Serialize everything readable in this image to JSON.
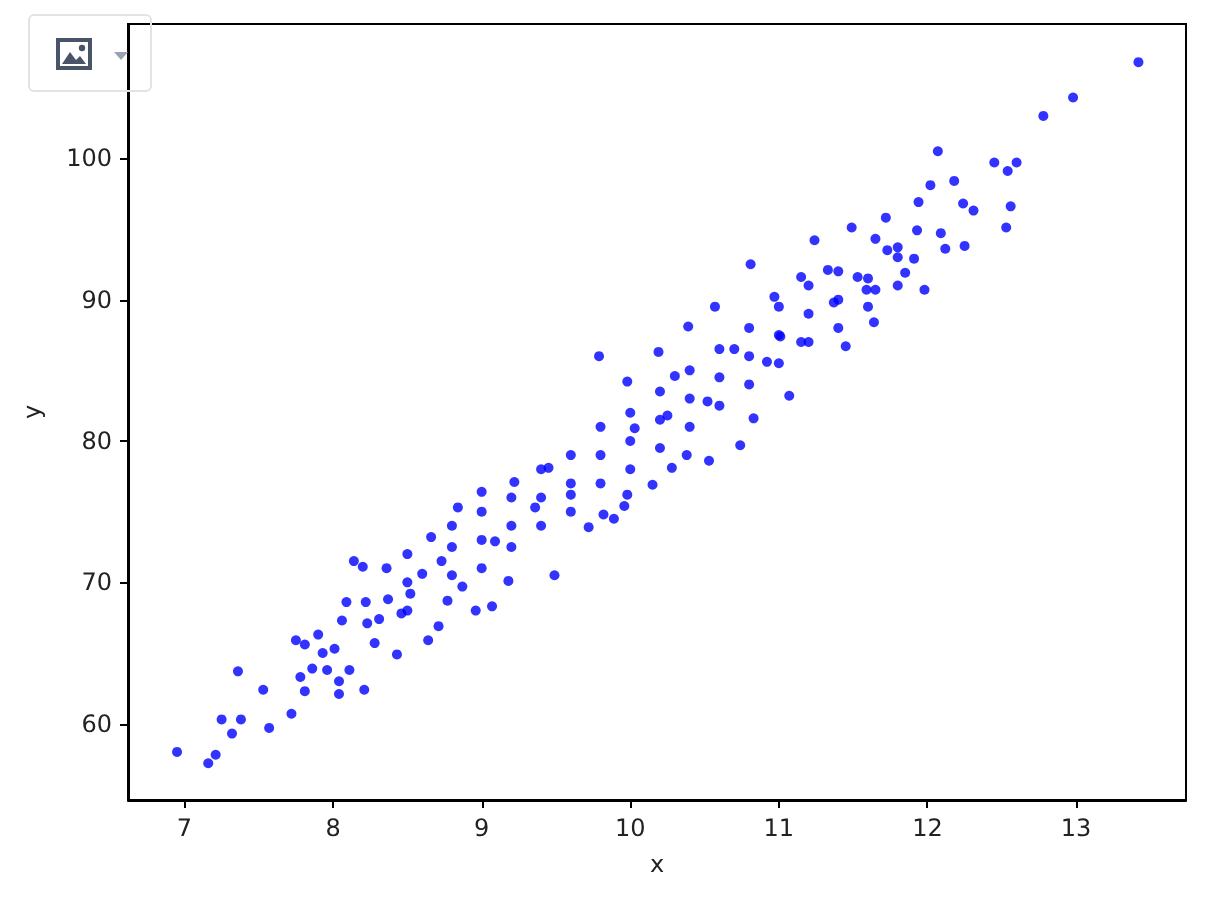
{
  "chart_data": {
    "type": "scatter",
    "xlabel": "x",
    "ylabel": "y",
    "color": "#0000ff",
    "marker": "circle",
    "xlim": [
      6.62,
      13.74
    ],
    "ylim": [
      54.6,
      109.5
    ],
    "xticks": [
      7,
      8,
      9,
      10,
      11,
      12,
      13
    ],
    "yticks": [
      60,
      70,
      80,
      90,
      100
    ],
    "x": [
      6.95,
      7.16,
      7.21,
      7.25,
      7.32,
      7.38,
      7.36,
      7.53,
      7.57,
      7.72,
      7.75,
      7.78,
      7.81,
      7.81,
      7.86,
      7.9,
      7.93,
      7.96,
      8.01,
      8.04,
      8.04,
      8.06,
      8.09,
      8.11,
      8.14,
      8.2,
      8.21,
      8.22,
      8.23,
      8.28,
      8.36,
      8.37,
      8.43,
      8.31,
      8.46,
      8.52,
      8.64,
      8.6,
      8.71,
      8.77,
      8.73,
      8.66,
      8.87,
      8.84,
      8.96,
      9.0,
      9.07,
      9.09,
      9.18,
      9.22,
      9.36,
      9.49,
      9.45,
      9.6,
      9.72,
      9.79,
      8.5,
      8.5,
      8.5,
      8.8,
      8.8,
      8.8,
      9.0,
      9.0,
      9.0,
      9.2,
      9.2,
      9.2,
      9.4,
      9.4,
      9.4,
      9.6,
      9.6,
      9.6,
      9.8,
      9.8,
      9.8,
      10.0,
      10.0,
      10.0,
      10.2,
      10.2,
      10.2,
      10.4,
      10.4,
      10.4,
      10.6,
      10.6,
      10.6,
      10.8,
      10.8,
      10.8,
      11.0,
      11.0,
      11.0,
      11.2,
      11.2,
      11.2,
      11.4,
      11.4,
      11.4,
      11.6,
      11.6,
      11.8,
      11.8,
      10.74,
      10.53,
      10.38,
      10.28,
      10.15,
      9.98,
      9.96,
      9.89,
      9.82,
      13.42,
      12.98,
      12.78,
      12.07,
      12.45,
      12.54,
      12.6,
      12.56,
      12.53,
      12.25,
      12.12,
      11.98,
      12.02,
      11.94,
      12.18,
      12.31,
      12.24,
      12.09,
      11.93,
      11.91,
      11.85,
      11.8,
      11.72,
      11.65,
      11.49,
      11.64,
      11.45,
      11.65,
      11.53,
      11.24,
      10.81,
      11.07,
      10.83,
      11.33,
      11.15,
      10.97,
      10.57,
      10.39,
      10.19,
      9.98,
      10.3,
      10.7,
      10.92,
      11.15,
      11.37,
      11.59,
      11.73,
      11.01,
      10.52,
      10.25,
      10.03
    ],
    "values": [
      58.0,
      57.2,
      57.8,
      60.3,
      59.3,
      60.3,
      63.7,
      62.4,
      59.7,
      60.7,
      65.9,
      63.3,
      62.3,
      65.6,
      63.9,
      66.3,
      65.0,
      63.8,
      65.3,
      63.0,
      62.1,
      67.3,
      68.6,
      63.8,
      71.5,
      71.1,
      62.4,
      68.6,
      67.1,
      65.7,
      71.0,
      68.8,
      64.9,
      67.4,
      67.8,
      69.2,
      65.9,
      70.6,
      66.9,
      68.7,
      71.5,
      73.2,
      69.7,
      75.3,
      68.0,
      76.4,
      68.3,
      72.9,
      70.1,
      77.1,
      75.3,
      70.5,
      78.1,
      76.2,
      73.9,
      86.0,
      68,
      70,
      72,
      70.5,
      72.5,
      74,
      71,
      73,
      75,
      72.5,
      74,
      76,
      74,
      76,
      78,
      75,
      77,
      79,
      77,
      79,
      81,
      78,
      80,
      82,
      79.5,
      81.5,
      83.5,
      81,
      83,
      85,
      82.5,
      84.5,
      86.5,
      84,
      86,
      88,
      85.5,
      87.5,
      89.5,
      87,
      89,
      91,
      88,
      90,
      92,
      89.5,
      91.5,
      91,
      93,
      79.7,
      78.6,
      79.0,
      78.1,
      76.9,
      76.2,
      75.4,
      74.5,
      74.8,
      106.8,
      104.3,
      103.0,
      100.5,
      99.7,
      99.1,
      99.7,
      96.6,
      95.1,
      93.8,
      93.6,
      90.7,
      98.1,
      96.9,
      98.4,
      96.3,
      96.8,
      94.7,
      94.9,
      92.9,
      91.9,
      93.7,
      95.8,
      94.3,
      95.1,
      88.4,
      86.7,
      90.7,
      91.6,
      94.2,
      92.5,
      83.2,
      81.6,
      92.1,
      91.6,
      90.2,
      89.5,
      88.1,
      86.3,
      84.2,
      84.6,
      86.5,
      85.6,
      87.0,
      89.8,
      90.7,
      93.5,
      87.4,
      82.8,
      81.8,
      80.9
    ]
  }
}
